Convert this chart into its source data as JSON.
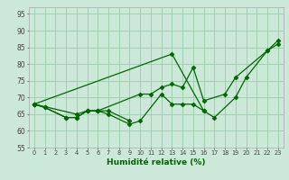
{
  "title": "",
  "xlabel": "Humidité relative (%)",
  "ylabel": "",
  "bg_color": "#cce8d8",
  "grid_color": "#99ccaa",
  "line_color": "#006600",
  "marker": "D",
  "markersize": 2.5,
  "linewidth": 0.9,
  "xlim": [
    -0.5,
    23.5
  ],
  "ylim": [
    55,
    97
  ],
  "yticks": [
    55,
    60,
    65,
    70,
    75,
    80,
    85,
    90,
    95
  ],
  "xticks": [
    0,
    1,
    2,
    3,
    4,
    5,
    6,
    7,
    8,
    9,
    10,
    11,
    12,
    13,
    14,
    15,
    16,
    17,
    18,
    19,
    20,
    21,
    22,
    23
  ],
  "series": [
    {
      "x": [
        0,
        1,
        3,
        4,
        5,
        6,
        7,
        9
      ],
      "y": [
        68,
        67,
        64,
        64,
        66,
        66,
        66,
        63
      ]
    },
    {
      "x": [
        0,
        1,
        3,
        4,
        5,
        6,
        7,
        9,
        10,
        12,
        13,
        14,
        15,
        16
      ],
      "y": [
        68,
        67,
        64,
        64,
        66,
        66,
        65,
        62,
        63,
        71,
        68,
        68,
        68,
        66
      ]
    },
    {
      "x": [
        0,
        4,
        5,
        6,
        10,
        11,
        12,
        13,
        14,
        15,
        16,
        18,
        19,
        22,
        23
      ],
      "y": [
        68,
        65,
        66,
        66,
        71,
        71,
        73,
        74,
        73,
        79,
        69,
        71,
        76,
        84,
        86
      ]
    },
    {
      "x": [
        0,
        13,
        16,
        17,
        19,
        20,
        22,
        23
      ],
      "y": [
        68,
        83,
        66,
        64,
        70,
        76,
        84,
        87
      ]
    }
  ]
}
